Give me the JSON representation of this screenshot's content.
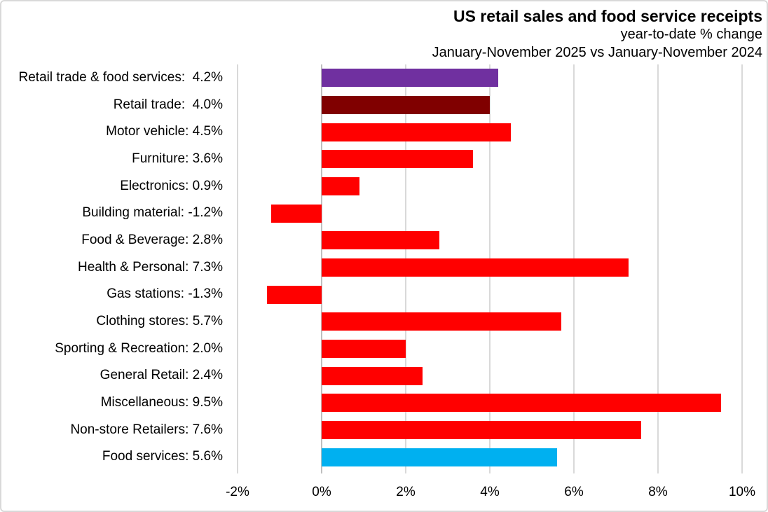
{
  "header": {
    "title": "US retail sales and food service receipts",
    "subtitle": "year-to-date % change",
    "comparison": "January-November 2025 vs January-November 2024"
  },
  "chart_data": {
    "type": "bar",
    "orientation": "horizontal",
    "title": "US retail sales and food service receipts",
    "subtitle": "year-to-date % change",
    "comparison": "January-November 2025 vs January-November 2024",
    "categories": [
      "Retail trade & food services",
      "Retail trade",
      "Motor vehicle",
      "Furniture",
      "Electronics",
      "Building material",
      "Food & Beverage",
      "Health & Personal",
      "Gas stations",
      "Clothing stores",
      "Sporting & Recreation",
      "General Retail",
      "Miscellaneous",
      "Non-store Retailers",
      "Food services"
    ],
    "category_labels": [
      "Retail trade & food services:  4.2%",
      "Retail trade:  4.0%",
      "Motor vehicle: 4.5%",
      "Furniture: 3.6%",
      "Electronics: 0.9%",
      "Building material: -1.2%",
      "Food & Beverage: 2.8%",
      "Health & Personal: 7.3%",
      "Gas stations: -1.3%",
      "Clothing stores: 5.7%",
      "Sporting & Recreation: 2.0%",
      "General Retail: 2.4%",
      "Miscellaneous: 9.5%",
      "Non-store Retailers: 7.6%",
      "Food services: 5.6%"
    ],
    "values": [
      4.2,
      4.0,
      4.5,
      3.6,
      0.9,
      -1.2,
      2.8,
      7.3,
      -1.3,
      5.7,
      2.0,
      2.4,
      9.5,
      7.6,
      5.6
    ],
    "bar_colors": [
      "#7030A0",
      "#800000",
      "#FF0000",
      "#FF0000",
      "#FF0000",
      "#FF0000",
      "#FF0000",
      "#FF0000",
      "#FF0000",
      "#FF0000",
      "#FF0000",
      "#FF0000",
      "#FF0000",
      "#FF0000",
      "#00B0F0"
    ],
    "xlim": [
      -2,
      10
    ],
    "x_tick_values": [
      -2,
      0,
      2,
      4,
      6,
      8,
      10
    ],
    "x_tick_labels": [
      "-2%",
      "0%",
      "2%",
      "4%",
      "6%",
      "8%",
      "10%"
    ],
    "grid": true,
    "legend": "none",
    "ylabel": "",
    "xlabel": "",
    "colors": {
      "grid": "#D9D9D9",
      "zero_line": "#BFBFBF",
      "text": "#000000",
      "background": "#FFFFFF",
      "border": "#D9D9D9"
    }
  }
}
